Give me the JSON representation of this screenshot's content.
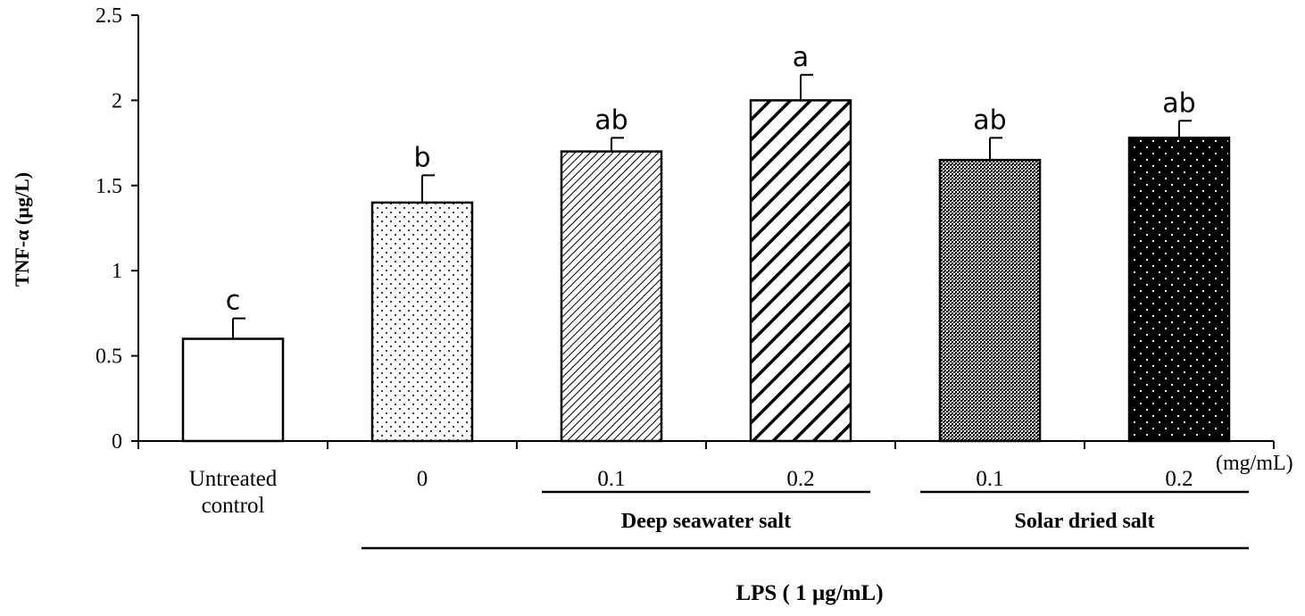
{
  "chart_data": {
    "type": "bar",
    "ylabel": "TNF-α (µg/L)",
    "ylim": [
      0,
      2.5
    ],
    "yticks": [
      "0",
      "0.5",
      "1",
      "1.5",
      "2",
      "2.5"
    ],
    "ytick_values": [
      0,
      0.5,
      1,
      1.5,
      2,
      2.5
    ],
    "grid": false,
    "unit_label": "(mg/mL)",
    "categories": [
      {
        "label": "Untreated control",
        "lines": [
          "Untreated",
          "control"
        ]
      },
      {
        "label": "0",
        "lines": [
          "0"
        ]
      },
      {
        "label": "0.1",
        "lines": [
          "0.1"
        ]
      },
      {
        "label": "0.2",
        "lines": [
          "0.2"
        ]
      },
      {
        "label": "0.1",
        "lines": [
          "0.1"
        ]
      },
      {
        "label": "0.2",
        "lines": [
          "0.2"
        ]
      }
    ],
    "values": [
      0.6,
      1.4,
      1.7,
      2.0,
      1.65,
      1.78
    ],
    "errors": [
      0.12,
      0.16,
      0.08,
      0.15,
      0.13,
      0.1
    ],
    "significance_letters": [
      "c",
      "b",
      "ab",
      "a",
      "ab",
      "ab"
    ],
    "patterns": [
      "white",
      "sparse-dots",
      "fine-diagonal",
      "bold-diagonal",
      "dense-crosshatch",
      "black-white-dots"
    ],
    "groups": [
      {
        "label": "Deep seawater salt",
        "category_range": [
          2,
          3
        ]
      },
      {
        "label": "Solar  dried salt",
        "category_range": [
          4,
          5
        ]
      }
    ],
    "outer_group": {
      "label": "LPS ( 1 µg/mL)",
      "category_range": [
        1,
        5
      ]
    }
  }
}
